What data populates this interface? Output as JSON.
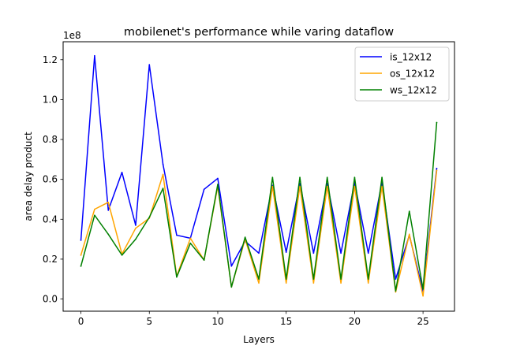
{
  "chart_data": {
    "type": "line",
    "title": "mobilenet's performance while varing dataflow",
    "xlabel": "Layers",
    "ylabel": "area delay product",
    "y_offset_label": "1e8",
    "xlim": [
      -1.3,
      27.3
    ],
    "ylim": [
      -0.061,
      1.29
    ],
    "x_ticks": [
      0,
      5,
      10,
      15,
      20,
      25
    ],
    "y_ticks": [
      0.0,
      0.2,
      0.4,
      0.6,
      0.8,
      1.0,
      1.2
    ],
    "y_tick_labels": [
      "0.0",
      "0.2",
      "0.4",
      "0.6",
      "0.8",
      "1.0",
      "1.2"
    ],
    "legend_position": "top-right",
    "grid": false,
    "x": [
      0,
      1,
      2,
      3,
      4,
      5,
      6,
      7,
      8,
      9,
      10,
      11,
      12,
      13,
      14,
      15,
      16,
      17,
      18,
      19,
      20,
      21,
      22,
      23,
      24,
      25,
      26
    ],
    "series": [
      {
        "name": "is_12x12",
        "color": "#0000ff",
        "values": [
          0.295,
          1.22,
          0.445,
          0.635,
          0.37,
          1.175,
          0.675,
          0.32,
          0.305,
          0.55,
          0.605,
          0.165,
          0.29,
          0.23,
          0.57,
          0.235,
          0.58,
          0.23,
          0.58,
          0.23,
          0.585,
          0.23,
          0.585,
          0.1,
          0.32,
          0.04,
          0.655
        ]
      },
      {
        "name": "os_12x12",
        "color": "#ffa500",
        "values": [
          0.22,
          0.45,
          0.485,
          0.225,
          0.355,
          0.405,
          0.625,
          0.115,
          0.305,
          0.195,
          0.565,
          0.06,
          0.3,
          0.08,
          0.565,
          0.08,
          0.565,
          0.08,
          0.565,
          0.08,
          0.565,
          0.08,
          0.565,
          0.035,
          0.325,
          0.015,
          0.645
        ]
      },
      {
        "name": "ws_12x12",
        "color": "#008000",
        "values": [
          0.165,
          0.42,
          0.325,
          0.22,
          0.3,
          0.41,
          0.555,
          0.11,
          0.28,
          0.195,
          0.575,
          0.06,
          0.31,
          0.1,
          0.61,
          0.1,
          0.61,
          0.1,
          0.61,
          0.1,
          0.61,
          0.1,
          0.61,
          0.04,
          0.44,
          0.05,
          0.885
        ]
      }
    ]
  }
}
